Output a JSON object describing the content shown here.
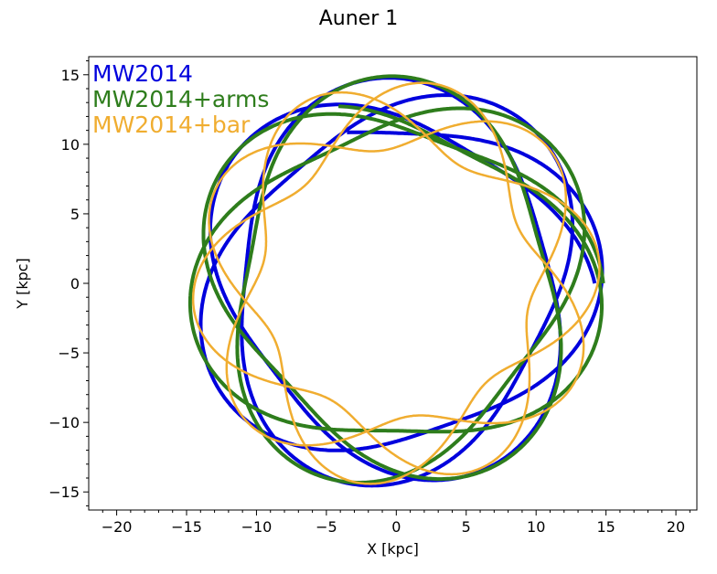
{
  "chart_data": {
    "type": "line",
    "title": "Auner 1",
    "xlabel": "X [kpc]",
    "ylabel": "Y [kpc]",
    "xlim": [
      -22,
      21.5
    ],
    "ylim": [
      -16.3,
      16.3
    ],
    "xticks": [
      -20,
      -15,
      -10,
      -5,
      0,
      5,
      10,
      15,
      20
    ],
    "yticks": [
      -15,
      -10,
      -5,
      0,
      5,
      10,
      15
    ],
    "xtick_labels": [
      "−20",
      "−15",
      "−10",
      "−5",
      "0",
      "5",
      "10",
      "15",
      "20"
    ],
    "ytick_labels": [
      "−15",
      "−10",
      "−5",
      "0",
      "5",
      "10",
      "15"
    ],
    "grid": false,
    "legend_position": "top-left",
    "series": [
      {
        "name": "MW2014",
        "color": "#0000dd",
        "r_min": 10.8,
        "r_max": 14.8,
        "radial_periods": 15,
        "phase_rad": 0.8,
        "samples": 2200
      },
      {
        "name": "MW2014+arms",
        "color": "#2e7d1c",
        "r_min": 10.6,
        "r_max": 14.9,
        "radial_periods": 15.5,
        "phase_rad": 0.3,
        "samples": 2200
      },
      {
        "name": "MW2014+bar",
        "color": "#f0ad30",
        "r_min": 9.6,
        "r_max": 14.6,
        "radial_periods": 22,
        "phase_rad": 1.7,
        "samples": 3000
      }
    ]
  }
}
